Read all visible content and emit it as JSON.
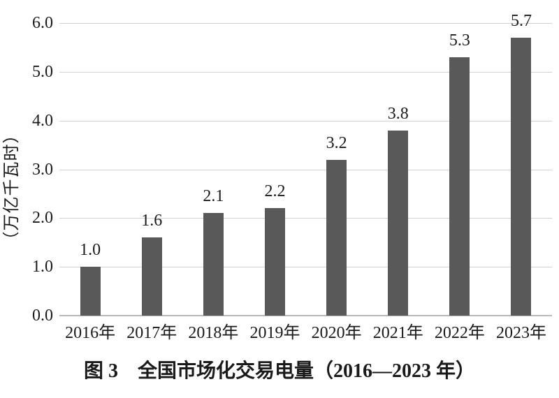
{
  "chart_data": {
    "type": "bar",
    "title": "图 3　全国市场化交易电量（2016—2023 年）",
    "ylabel": "（万亿千瓦时）",
    "xlabel": "",
    "categories": [
      "2016年",
      "2017年",
      "2018年",
      "2019年",
      "2020年",
      "2021年",
      "2022年",
      "2023年"
    ],
    "values": [
      1.0,
      1.6,
      2.1,
      2.2,
      3.2,
      3.8,
      5.3,
      5.7
    ],
    "value_labels": [
      "1.0",
      "1.6",
      "2.1",
      "2.2",
      "3.2",
      "3.8",
      "5.3",
      "5.7"
    ],
    "ylim": [
      0,
      6
    ],
    "yticks": [
      "0.0",
      "1.0",
      "2.0",
      "3.0",
      "4.0",
      "5.0",
      "6.0"
    ],
    "grid": true,
    "legend_position": "none",
    "colors": {
      "bar": "#595959",
      "gridline": "#d2d2d2",
      "axis_line": "#b8b8b8",
      "text": "#1a1a1a",
      "background": "#ffffff"
    }
  }
}
